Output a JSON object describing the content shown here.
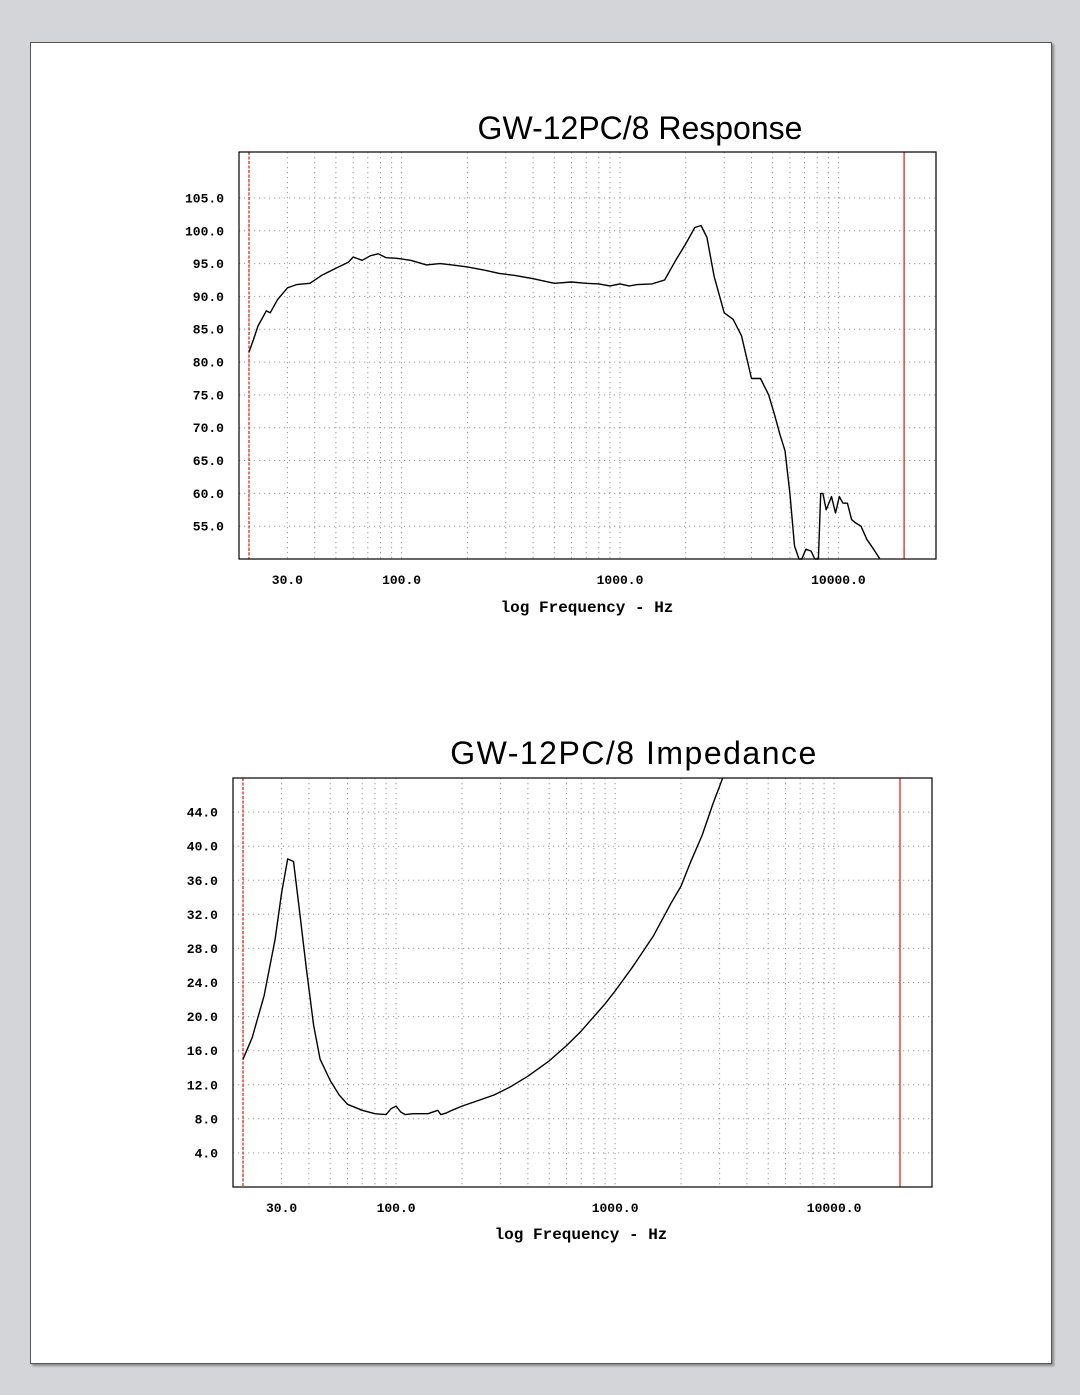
{
  "chart_data": [
    {
      "type": "line",
      "title": "GW-12PC/8 Response",
      "xlabel": "log Frequency - Hz",
      "ylabel": "",
      "x_scale": "log",
      "xlim": [
        18,
        28000
      ],
      "ylim": [
        50,
        112
      ],
      "x_ticks": [
        "30.0",
        "100.0",
        "1000.0",
        "10000.0"
      ],
      "y_ticks": [
        "105.0",
        "100.0",
        "95.0",
        "90.0",
        "85.0",
        "80.0",
        "75.0",
        "70.0",
        "65.0",
        "60.0",
        "55.0"
      ],
      "markers": [
        20,
        20000
      ],
      "grid": true,
      "series": [
        {
          "x": [
            20,
            21,
            22,
            24,
            25,
            27,
            30,
            33,
            38,
            43,
            50,
            57,
            60,
            66,
            72,
            78,
            85,
            95,
            110,
            130,
            150,
            170,
            200,
            240,
            280,
            330,
            400,
            500,
            600,
            700,
            800,
            900,
            1000,
            1100,
            1200,
            1400,
            1600,
            1800,
            2000,
            2200,
            2350,
            2500,
            2700,
            3000,
            3300,
            3600,
            4000,
            4400,
            4800,
            5100,
            5400,
            5700,
            6000,
            6300,
            6600,
            6800,
            7100,
            7500,
            7800,
            8100,
            8300,
            8500,
            8800,
            9300,
            9700,
            10100,
            10500,
            11000,
            11500,
            12000,
            12700,
            13500,
            14500,
            15500
          ],
          "values": [
            81.5,
            83.5,
            85.5,
            87.8,
            87.5,
            89.5,
            91.3,
            91.8,
            92.0,
            93.2,
            94.3,
            95.2,
            96.0,
            95.5,
            96.2,
            96.5,
            95.9,
            95.8,
            95.5,
            94.8,
            95.0,
            94.8,
            94.5,
            94.0,
            93.5,
            93.2,
            92.7,
            92.0,
            92.2,
            92.0,
            91.9,
            91.6,
            91.9,
            91.6,
            91.8,
            91.9,
            92.5,
            95.5,
            98.0,
            100.5,
            100.8,
            99.0,
            93.0,
            87.5,
            86.5,
            84.0,
            77.5,
            77.5,
            75.0,
            72.0,
            69.0,
            66.5,
            60.0,
            52.0,
            50.0,
            50.0,
            51.5,
            51.2,
            50.0,
            50.0,
            60.0,
            60.0,
            57.5,
            59.5,
            57.0,
            59.5,
            58.5,
            58.5,
            56.0,
            55.5,
            55.0,
            53.0,
            51.5,
            50.0
          ]
        }
      ]
    },
    {
      "type": "line",
      "title": "GW-12PC/8 Impedance",
      "xlabel": "log Frequency - Hz",
      "ylabel": "",
      "x_scale": "log",
      "xlim": [
        18,
        28000
      ],
      "ylim": [
        0,
        48
      ],
      "x_ticks": [
        "30.0",
        "100.0",
        "1000.0",
        "10000.0"
      ],
      "y_ticks": [
        "44.0",
        "40.0",
        "36.0",
        "32.0",
        "28.0",
        "24.0",
        "20.0",
        "16.0",
        "12.0",
        "8.0",
        "4.0"
      ],
      "markers": [
        20,
        20000
      ],
      "grid": true,
      "series": [
        {
          "x": [
            20,
            22,
            25,
            28,
            30,
            32,
            34,
            36,
            39,
            42,
            45,
            50,
            55,
            60,
            70,
            80,
            90,
            95,
            100,
            105,
            110,
            120,
            140,
            155,
            160,
            170,
            180,
            200,
            240,
            280,
            330,
            400,
            500,
            600,
            700,
            800,
            900,
            1000,
            1200,
            1500,
            1800,
            2000,
            2200,
            2500,
            2800,
            3100
          ],
          "values": [
            15.0,
            17.5,
            22.5,
            29.0,
            34.5,
            38.5,
            38.2,
            33.0,
            25.5,
            19.0,
            15.0,
            12.5,
            10.8,
            9.7,
            9.0,
            8.6,
            8.5,
            9.2,
            9.5,
            8.8,
            8.5,
            8.6,
            8.6,
            9.0,
            8.5,
            8.7,
            9.0,
            9.5,
            10.2,
            10.8,
            11.7,
            13.0,
            14.8,
            16.6,
            18.3,
            20.0,
            21.5,
            23.0,
            25.8,
            29.5,
            33.3,
            35.3,
            38.0,
            41.3,
            45.0,
            48.0
          ]
        }
      ]
    }
  ],
  "colors": {
    "curve": "#000000",
    "marker": "#e8271c",
    "grid": "#9a9a9a",
    "frame": "#000000"
  }
}
